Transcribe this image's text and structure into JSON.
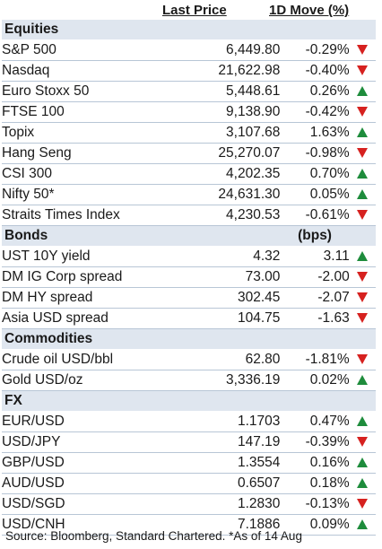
{
  "header": {
    "col_price": "Last Price",
    "col_move": "1D Move (%)"
  },
  "sections": [
    {
      "title": "Equities",
      "unit": "",
      "rows": [
        {
          "name": "S&P 500",
          "price": "6,449.80",
          "move": "-0.29%",
          "dir": "down"
        },
        {
          "name": "Nasdaq",
          "price": "21,622.98",
          "move": "-0.40%",
          "dir": "down"
        },
        {
          "name": "Euro Stoxx 50",
          "price": "5,448.61",
          "move": "0.26%",
          "dir": "up"
        },
        {
          "name": "FTSE 100",
          "price": "9,138.90",
          "move": "-0.42%",
          "dir": "down"
        },
        {
          "name": "Topix",
          "price": "3,107.68",
          "move": "1.63%",
          "dir": "up"
        },
        {
          "name": "Hang Seng",
          "price": "25,270.07",
          "move": "-0.98%",
          "dir": "down"
        },
        {
          "name": "CSI 300",
          "price": "4,202.35",
          "move": "0.70%",
          "dir": "up"
        },
        {
          "name": "Nifty 50*",
          "price": "24,631.30",
          "move": "0.05%",
          "dir": "up"
        },
        {
          "name": "Straits Times Index",
          "price": "4,230.53",
          "move": "-0.61%",
          "dir": "down"
        }
      ]
    },
    {
      "title": "Bonds",
      "unit": "(bps)",
      "rows": [
        {
          "name": "UST 10Y yield",
          "price": "4.32",
          "move": "3.11",
          "dir": "up"
        },
        {
          "name": "DM IG Corp spread",
          "price": "73.00",
          "move": "-2.00",
          "dir": "down"
        },
        {
          "name": "DM HY spread",
          "price": "302.45",
          "move": "-2.07",
          "dir": "down"
        },
        {
          "name": "Asia USD spread",
          "price": "104.75",
          "move": "-1.63",
          "dir": "down"
        }
      ]
    },
    {
      "title": "Commodities",
      "unit": "",
      "rows": [
        {
          "name": "Crude oil USD/bbl",
          "price": "62.80",
          "move": "-1.81%",
          "dir": "down"
        },
        {
          "name": "Gold USD/oz",
          "price": "3,336.19",
          "move": "0.02%",
          "dir": "up"
        }
      ]
    },
    {
      "title": "FX",
      "unit": "",
      "rows": [
        {
          "name": "EUR/USD",
          "price": "1.1703",
          "move": "0.47%",
          "dir": "up"
        },
        {
          "name": "USD/JPY",
          "price": "147.19",
          "move": "-0.39%",
          "dir": "down"
        },
        {
          "name": "GBP/USD",
          "price": "1.3554",
          "move": "0.16%",
          "dir": "up"
        },
        {
          "name": "AUD/USD",
          "price": "0.6507",
          "move": "0.18%",
          "dir": "up"
        },
        {
          "name": "USD/SGD",
          "price": "1.2830",
          "move": "-0.13%",
          "dir": "down"
        },
        {
          "name": "USD/CNH",
          "price": "7.1886",
          "move": "0.09%",
          "dir": "up"
        }
      ]
    }
  ],
  "colors": {
    "up": "#1e8c3c",
    "down": "#d6211f",
    "section_bg": "#dfe6ef"
  },
  "icons": {
    "up": "triangle-up-icon",
    "down": "triangle-down-icon"
  },
  "source": "Source: Bloomberg, Standard Chartered. *As of 14 Aug"
}
